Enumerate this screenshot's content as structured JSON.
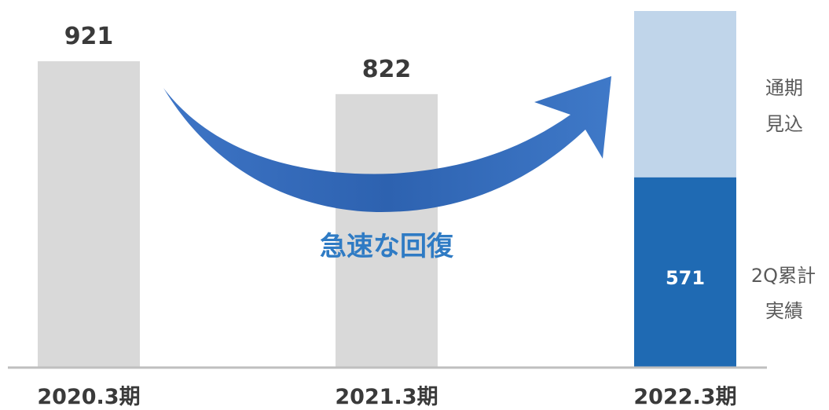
{
  "chart_data": {
    "type": "bar",
    "categories": [
      "2020.3期",
      "2021.3期",
      "2022.3期"
    ],
    "series": [
      {
        "values": [
          921,
          822,
          571
        ],
        "color_main": "#d9d9d9",
        "color_actual": "#1f6ab3"
      },
      {
        "values": [
          null,
          null,
          null
        ],
        "color": "#c0d5ea"
      }
    ],
    "value_labels": [
      "921",
      "822",
      "571"
    ],
    "annotations": {
      "forecast_label": [
        "通期",
        "見込"
      ],
      "actual_label": [
        "2Q累計",
        "実績"
      ],
      "center_text": "急速な回復"
    },
    "colors": {
      "gray_bar": "#d9d9d9",
      "actual_bar": "#1f6ab3",
      "forecast_bar": "#c0d5ea",
      "arrow": "#3a6fc0",
      "axis": "#bfbfbf",
      "value_text": "#3a3a3a",
      "center_text": "#2f7bc4"
    },
    "arrow": "curved-up-arrow",
    "ylim": [
      0,
      921
    ],
    "grid": false,
    "legend": "none"
  }
}
